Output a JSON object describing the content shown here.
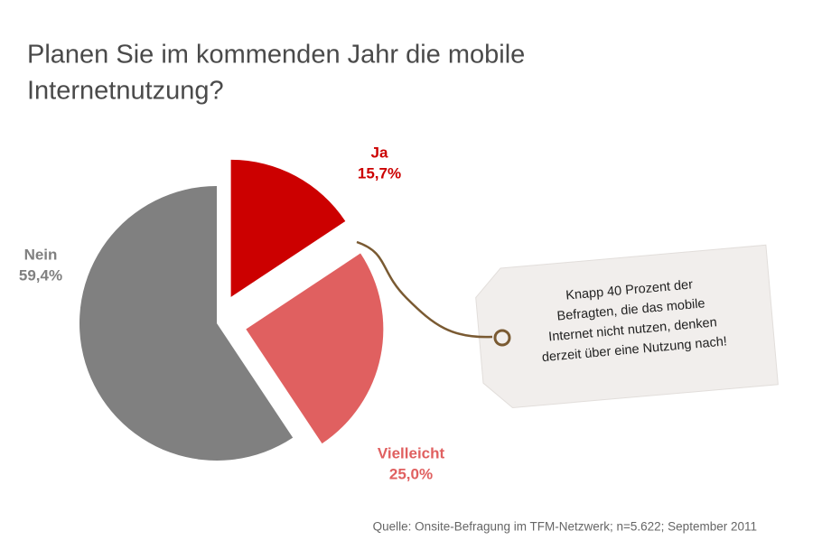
{
  "chart_data": {
    "type": "pie",
    "title": [
      "Planen Sie im kommenden Jahr die mobile",
      "Internetnutzung?"
    ],
    "categories": [
      "Ja",
      "Vielleicht",
      "Nein"
    ],
    "values": [
      15.7,
      25.0,
      59.4
    ],
    "value_labels": [
      "15,7%",
      "25,0%",
      "59,4%"
    ],
    "colors": [
      "#cc0000",
      "#e06060",
      "#808080"
    ],
    "annotation": [
      "Knapp 40 Prozent der",
      "Befragten, die das mobile",
      "Internet nicht nutzen, denken",
      "derzeit über eine Nutzung nach!"
    ],
    "source": "Quelle: Onsite-Befragung im TFM-Netzwerk; n=5.622; September 2011"
  }
}
